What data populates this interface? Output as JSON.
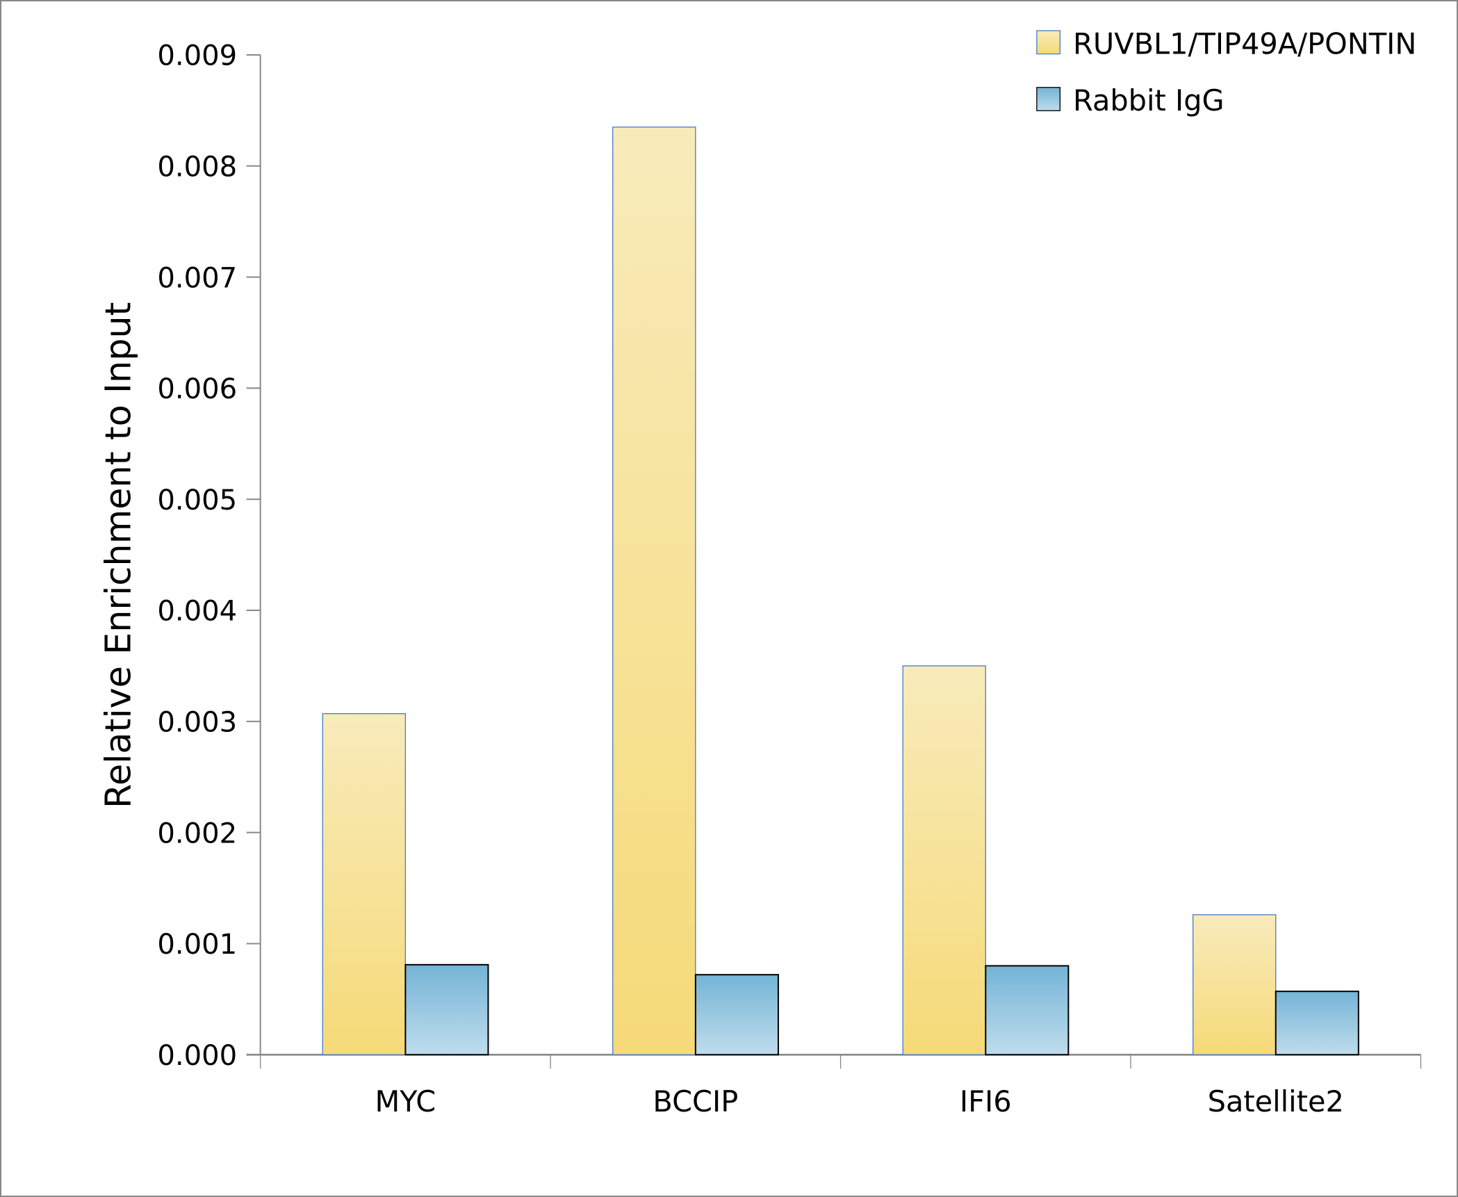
{
  "chart_data": {
    "type": "bar",
    "title": "",
    "xlabel": "",
    "ylabel": "Relative Enrichment to Input",
    "ylim": [
      0,
      0.009
    ],
    "yticks": [
      "0.000",
      "0.001",
      "0.002",
      "0.003",
      "0.004",
      "0.005",
      "0.006",
      "0.007",
      "0.008",
      "0.009"
    ],
    "categories": [
      "MYC",
      "BCCIP",
      "IFI6",
      "Satellite2"
    ],
    "series": [
      {
        "name": "RUVBL1/TIP49A/PONTIN",
        "values": [
          0.00307,
          0.00835,
          0.0035,
          0.00126
        ],
        "color_top": "#f8ebbb",
        "color_bottom": "#f6da78",
        "stroke": "#4a7fc1"
      },
      {
        "name": "Rabbit IgG",
        "values": [
          0.00081,
          0.00072,
          0.0008,
          0.00057
        ],
        "color_top": "#74b4d6",
        "color_bottom": "#bfdcec",
        "stroke": "#000000"
      }
    ],
    "grid": false,
    "legend_position": "top-right"
  }
}
